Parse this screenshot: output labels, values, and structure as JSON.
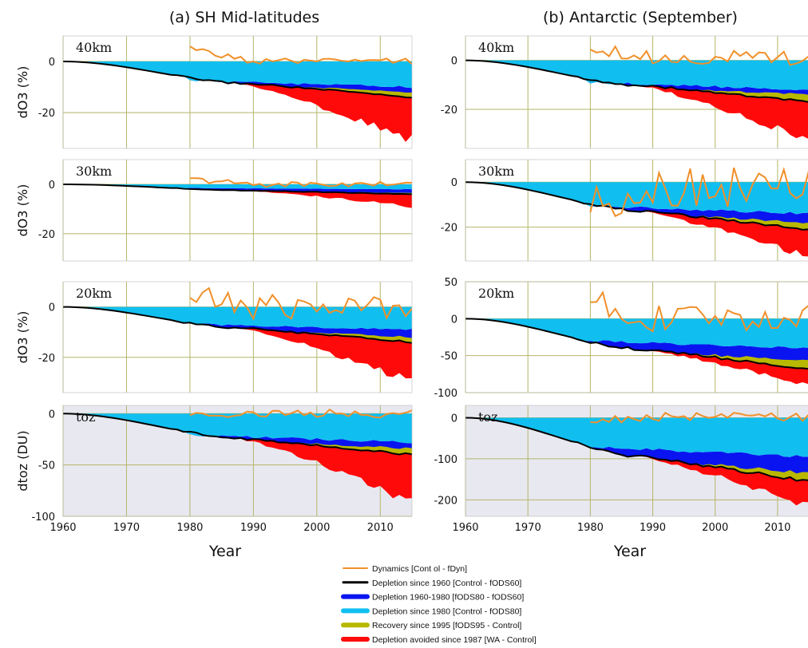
{
  "chart_data": {
    "type": "area",
    "x_label": "Year",
    "x_ticks": [
      "1960",
      "1970",
      "1980",
      "1990",
      "2000",
      "2010"
    ],
    "xlim": [
      1960,
      2015
    ],
    "legend_placement": "bottom-center",
    "colors": {
      "dynamics": "#f0902a",
      "depletion_since_1960": "#000000",
      "depletion_1960_1980": "#0a14f0",
      "depletion_since_1980": "#10bff0",
      "recovery_since_1995": "#b8b800",
      "depletion_avoided_1987": "#ff0a0a",
      "grid": "#b5b56a",
      "toz_background": "#e8e8f0"
    },
    "legend": [
      {
        "key": "dynamics",
        "label": "Dynamics [Cont ol - fDyn]"
      },
      {
        "key": "depletion_since_1960",
        "label": "Depletion since 1960 [Control - fODS60]"
      },
      {
        "key": "depletion_1960_1980",
        "label": "Depletion 1960-1980 [fODS80 - fODS60]"
      },
      {
        "key": "depletion_since_1980",
        "label": "Depletion since 1980 [Control - fODS80]"
      },
      {
        "key": "recovery_since_1995",
        "label": "Recovery since 1995 [fODS95 - Control]"
      },
      {
        "key": "depletion_avoided_1987",
        "label": "Depletion avoided since 1987 [WA - Control]"
      }
    ],
    "columns": [
      {
        "title": "(a) SH Mid-latitudes"
      },
      {
        "title": "(b) Antarctic (September)"
      }
    ],
    "panels": [
      {
        "row": 0,
        "col": 0,
        "label": "40km",
        "y_label": "dO3 (%)",
        "ylim": [
          -34,
          10
        ],
        "y_ticks": [
          "0",
          "-20"
        ],
        "y_tick_values": [
          0,
          -20
        ],
        "toz": false,
        "control_end": -14,
        "fods80_end": -10,
        "recovery_end": -2,
        "avoided_end": -17,
        "dyn_amp": 1.2,
        "dyn_base": 0,
        "dyn_start": 5
      },
      {
        "row": 0,
        "col": 1,
        "label": "40km",
        "y_label": "",
        "ylim": [
          -36,
          10
        ],
        "y_ticks": [
          "0",
          "-20"
        ],
        "y_tick_values": [
          0,
          -20
        ],
        "toz": false,
        "control_end": -17,
        "fods80_end": -12,
        "recovery_end": -3,
        "avoided_end": -16,
        "dyn_amp": 3,
        "dyn_base": 1,
        "dyn_start": 6
      },
      {
        "row": 1,
        "col": 0,
        "label": "30km",
        "y_label": "dO3 (%)",
        "ylim": [
          -31,
          10
        ],
        "y_ticks": [
          "0",
          "-20"
        ],
        "y_tick_values": [
          0,
          -20
        ],
        "toz": false,
        "control_end": -4,
        "fods80_end": -2,
        "recovery_end": -0.5,
        "avoided_end": -5,
        "dyn_amp": 1.2,
        "dyn_base": 0,
        "dyn_start": 2
      },
      {
        "row": 1,
        "col": 1,
        "label": "30km",
        "y_label": "",
        "ylim": [
          -35,
          10
        ],
        "y_ticks": [
          "0",
          "-20"
        ],
        "y_tick_values": [
          0,
          -20
        ],
        "toz": false,
        "control_end": -21,
        "fods80_end": -14,
        "recovery_end": -3,
        "avoided_end": -12,
        "dyn_amp": 9,
        "dyn_base": -2,
        "dyn_start": -10
      },
      {
        "row": 2,
        "col": 0,
        "label": "20km",
        "y_label": "dO3 (%)",
        "ylim": [
          -34,
          10
        ],
        "y_ticks": [
          "0",
          "-20"
        ],
        "y_tick_values": [
          0,
          -20
        ],
        "toz": false,
        "control_end": -14,
        "fods80_end": -9,
        "recovery_end": -2,
        "avoided_end": -16,
        "dyn_amp": 5,
        "dyn_base": 0,
        "dyn_start": 4
      },
      {
        "row": 2,
        "col": 1,
        "label": "20km",
        "y_label": "",
        "ylim": [
          -100,
          50
        ],
        "y_ticks": [
          "50",
          "0",
          "-50",
          "-100"
        ],
        "y_tick_values": [
          50,
          0,
          -50,
          -100
        ],
        "toz": false,
        "control_end": -68,
        "fods80_end": -40,
        "recovery_end": -12,
        "avoided_end": -22,
        "dyn_amp": 18,
        "dyn_base": 0,
        "dyn_start": 25
      },
      {
        "row": 3,
        "col": 0,
        "label": "toz",
        "y_label": "dtoz (DU)",
        "ylim": [
          -100,
          8
        ],
        "y_ticks": [
          "0",
          "-50",
          "-100"
        ],
        "y_tick_values": [
          0,
          -50,
          -100
        ],
        "toz": true,
        "control_end": -40,
        "fods80_end": -28,
        "recovery_end": -6,
        "avoided_end": -45,
        "dyn_amp": 4,
        "dyn_base": 0,
        "dyn_start": 0
      },
      {
        "row": 3,
        "col": 1,
        "label": "toz",
        "y_label": "",
        "ylim": [
          -240,
          30
        ],
        "y_ticks": [
          "0",
          "-100",
          "-200"
        ],
        "y_tick_values": [
          0,
          -100,
          -200
        ],
        "toz": true,
        "control_end": -155,
        "fods80_end": -95,
        "recovery_end": -20,
        "avoided_end": -60,
        "dyn_amp": 10,
        "dyn_base": 2,
        "dyn_start": -8
      }
    ]
  }
}
